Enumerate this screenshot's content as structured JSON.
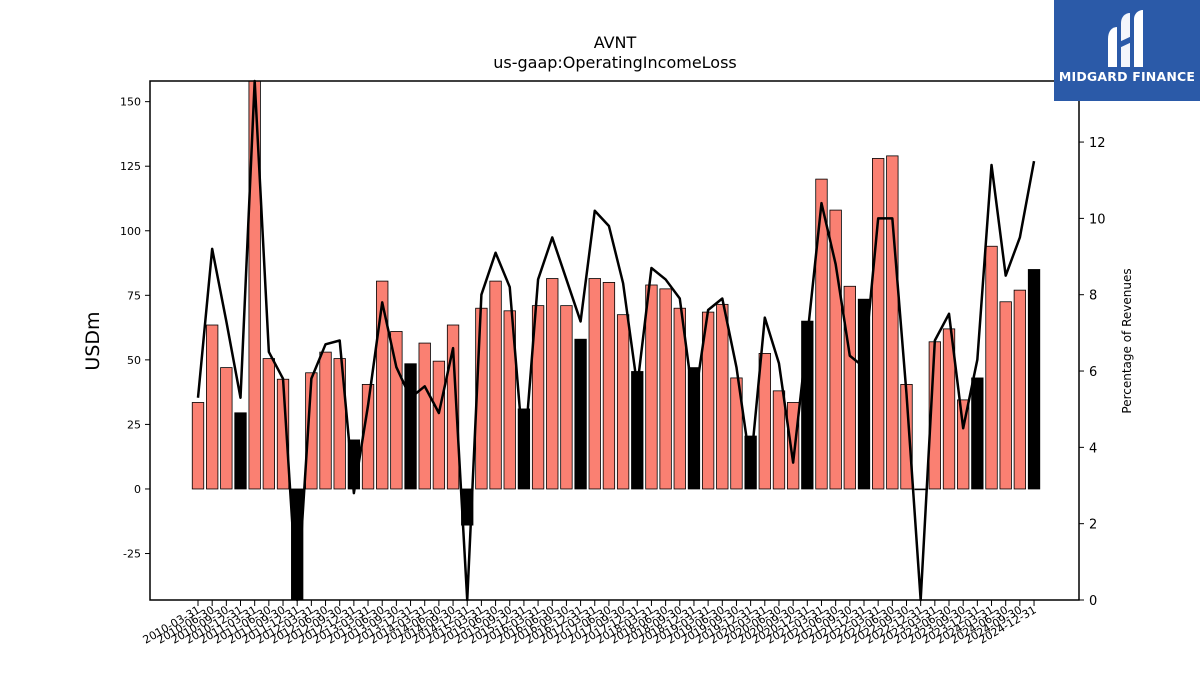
{
  "logo": {
    "text": "MIDGARD FINANCE"
  },
  "chart_data": {
    "type": "bar",
    "title": "AVNT",
    "subtitle": "us-gaap:OperatingIncomeLoss",
    "ylabel": "USDm",
    "y2label": "Percentage of Revenues",
    "ylim": [
      -43,
      158
    ],
    "y2lim": [
      0,
      13.6
    ],
    "yticks": [
      -25,
      0,
      25,
      50,
      75,
      100,
      125,
      150
    ],
    "y2ticks": [
      0,
      2,
      4,
      6,
      8,
      10,
      12
    ],
    "grid": false,
    "colors": {
      "quarter": "#fa8072",
      "annual": "#000000",
      "line": "#000000"
    },
    "categories": [
      "2010-03-31",
      "2010-06-30",
      "2010-09-30",
      "2010-12-31",
      "2011-03-31",
      "2011-06-30",
      "2011-09-30",
      "2011-12-31",
      "2012-03-31",
      "2012-06-30",
      "2012-09-30",
      "2012-12-31",
      "2013-03-31",
      "2013-06-30",
      "2013-09-30",
      "2013-12-31",
      "2014-03-31",
      "2014-06-30",
      "2014-09-30",
      "2014-12-31",
      "2015-03-31",
      "2015-06-30",
      "2015-09-30",
      "2015-12-31",
      "2016-03-31",
      "2016-06-30",
      "2016-09-30",
      "2016-12-31",
      "2017-03-31",
      "2017-06-30",
      "2017-09-30",
      "2017-12-31",
      "2018-03-31",
      "2018-06-30",
      "2018-09-30",
      "2018-12-31",
      "2019-03-31",
      "2019-06-30",
      "2019-09-30",
      "2019-12-31",
      "2020-03-31",
      "2020-06-30",
      "2020-09-30",
      "2020-12-31",
      "2021-03-31",
      "2021-06-30",
      "2021-09-30",
      "2021-12-31",
      "2022-03-31",
      "2022-06-30",
      "2022-09-30",
      "2022-12-31",
      "2023-03-31",
      "2023-06-30",
      "2023-09-30",
      "2023-12-31",
      "2024-03-31",
      "2024-06-30",
      "2024-09-30",
      "2024-12-31"
    ],
    "tick_labels": [
      "2010-03-31",
      "2010-06-30",
      "2010-09-30",
      "2010-12-31",
      "2011-03-31",
      "2011-06-30",
      "2011-09-30",
      "2011-12-31",
      "2012-03-31",
      "2012-06-30",
      "2012-09-30",
      "2012-12-31",
      "2013-03-31",
      "2013-06-30",
      "2013-09-30",
      "2013-12-31",
      "2014-03-31",
      "2014-06-30",
      "2014-09-30",
      "2014-12-31",
      "2015-03-31",
      "2015-06-30",
      "2015-09-30",
      "2015-12-31",
      "2016-03-31",
      "2016-06-30",
      "2016-09-30",
      "2016-12-31",
      "2017-03-31",
      "2017-06-30",
      "2017-09-30",
      "2017-12-31",
      "2018-03-31",
      "2018-06-30",
      "2018-09-30",
      "2018-12-31",
      "2019-03-31",
      "2019-06-30",
      "2019-09-30",
      "2019-12-31",
      "2020-03-31",
      "2020-06-30",
      "2020-09-30",
      "2020-12-31",
      "2021-03-31",
      "2021-06-30",
      "2021-09-30",
      "2021-12-31",
      "2022-03-31",
      "2022-06-30",
      "2022-09-30",
      "2022-12-31",
      "2023-03-31",
      "2023-06-30",
      "2023-09-30",
      "2023-12-31",
      "2024-03-31",
      "2024-06-30",
      "2024-09-30",
      "2024-12-31"
    ],
    "values": [
      33.5,
      63.5,
      47,
      29.5,
      170,
      50.5,
      42.5,
      -43,
      45,
      53,
      50.5,
      19,
      40.5,
      80.5,
      61,
      48.5,
      56.5,
      49.5,
      63.5,
      -14,
      70,
      80.5,
      69,
      31,
      71,
      81.5,
      71,
      58,
      81.5,
      80,
      67.5,
      45.5,
      79,
      77.5,
      70,
      47,
      68.5,
      71.5,
      43,
      20.5,
      52.5,
      38,
      33.5,
      65,
      120,
      108,
      78.5,
      73.5,
      128,
      129,
      40.5,
      0,
      57,
      62,
      34.5,
      43,
      94,
      72.5,
      77,
      85
    ],
    "annual": [
      false,
      false,
      false,
      true,
      false,
      false,
      false,
      true,
      false,
      false,
      false,
      true,
      false,
      false,
      false,
      true,
      false,
      false,
      false,
      true,
      false,
      false,
      false,
      true,
      false,
      false,
      false,
      true,
      false,
      false,
      false,
      true,
      false,
      false,
      false,
      true,
      false,
      false,
      false,
      true,
      false,
      false,
      false,
      true,
      false,
      false,
      false,
      true,
      false,
      false,
      false,
      true,
      false,
      false,
      false,
      true,
      false,
      false,
      false,
      true
    ],
    "line_values": [
      5.3,
      9.2,
      7.3,
      5.3,
      15,
      6.5,
      5.8,
      0,
      5.8,
      6.7,
      6.8,
      2.8,
      5.1,
      7.8,
      6.1,
      5.3,
      5.6,
      4.9,
      6.6,
      -0.5,
      8,
      9.1,
      8.2,
      3.7,
      8.4,
      9.5,
      8.4,
      7.3,
      10.2,
      9.8,
      8.3,
      5.6,
      8.7,
      8.4,
      7.9,
      5.1,
      7.6,
      7.9,
      6.1,
      3.5,
      7.4,
      6.2,
      3.6,
      6.9,
      10.4,
      8.8,
      6.4,
      6.1,
      10,
      10,
      5.4,
      0,
      6.8,
      7.5,
      4.5,
      6.3,
      11.4,
      8.5,
      9.5,
      11.5
    ]
  }
}
